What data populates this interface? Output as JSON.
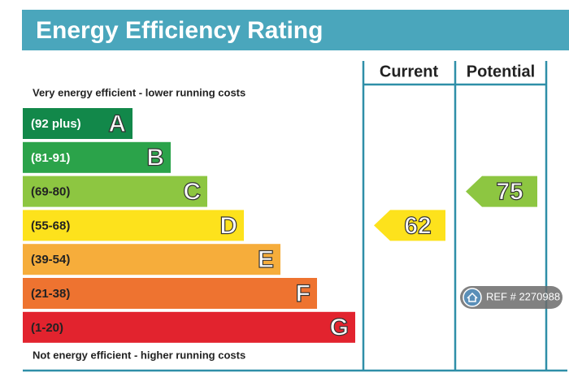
{
  "title": "Energy Efficiency Rating",
  "columns": [
    "Current",
    "Potential"
  ],
  "top_note": "Very energy efficient - lower running costs",
  "bottom_note": "Not energy efficient - higher running costs",
  "bands": [
    {
      "range": "(92 plus)",
      "letter": "A",
      "color": "#12884a"
    },
    {
      "range": "(81-91)",
      "letter": "B",
      "color": "#2ba34a"
    },
    {
      "range": "(69-80)",
      "letter": "C",
      "color": "#8dc641"
    },
    {
      "range": "(55-68)",
      "letter": "D",
      "color": "#fde21c"
    },
    {
      "range": "(39-54)",
      "letter": "E",
      "color": "#f6ad3b"
    },
    {
      "range": "(21-38)",
      "letter": "F",
      "color": "#ee7330"
    },
    {
      "range": "(1-20)",
      "letter": "G",
      "color": "#e2232e"
    }
  ],
  "current": 62,
  "potential": 75,
  "ref": "REF # 2270988"
}
